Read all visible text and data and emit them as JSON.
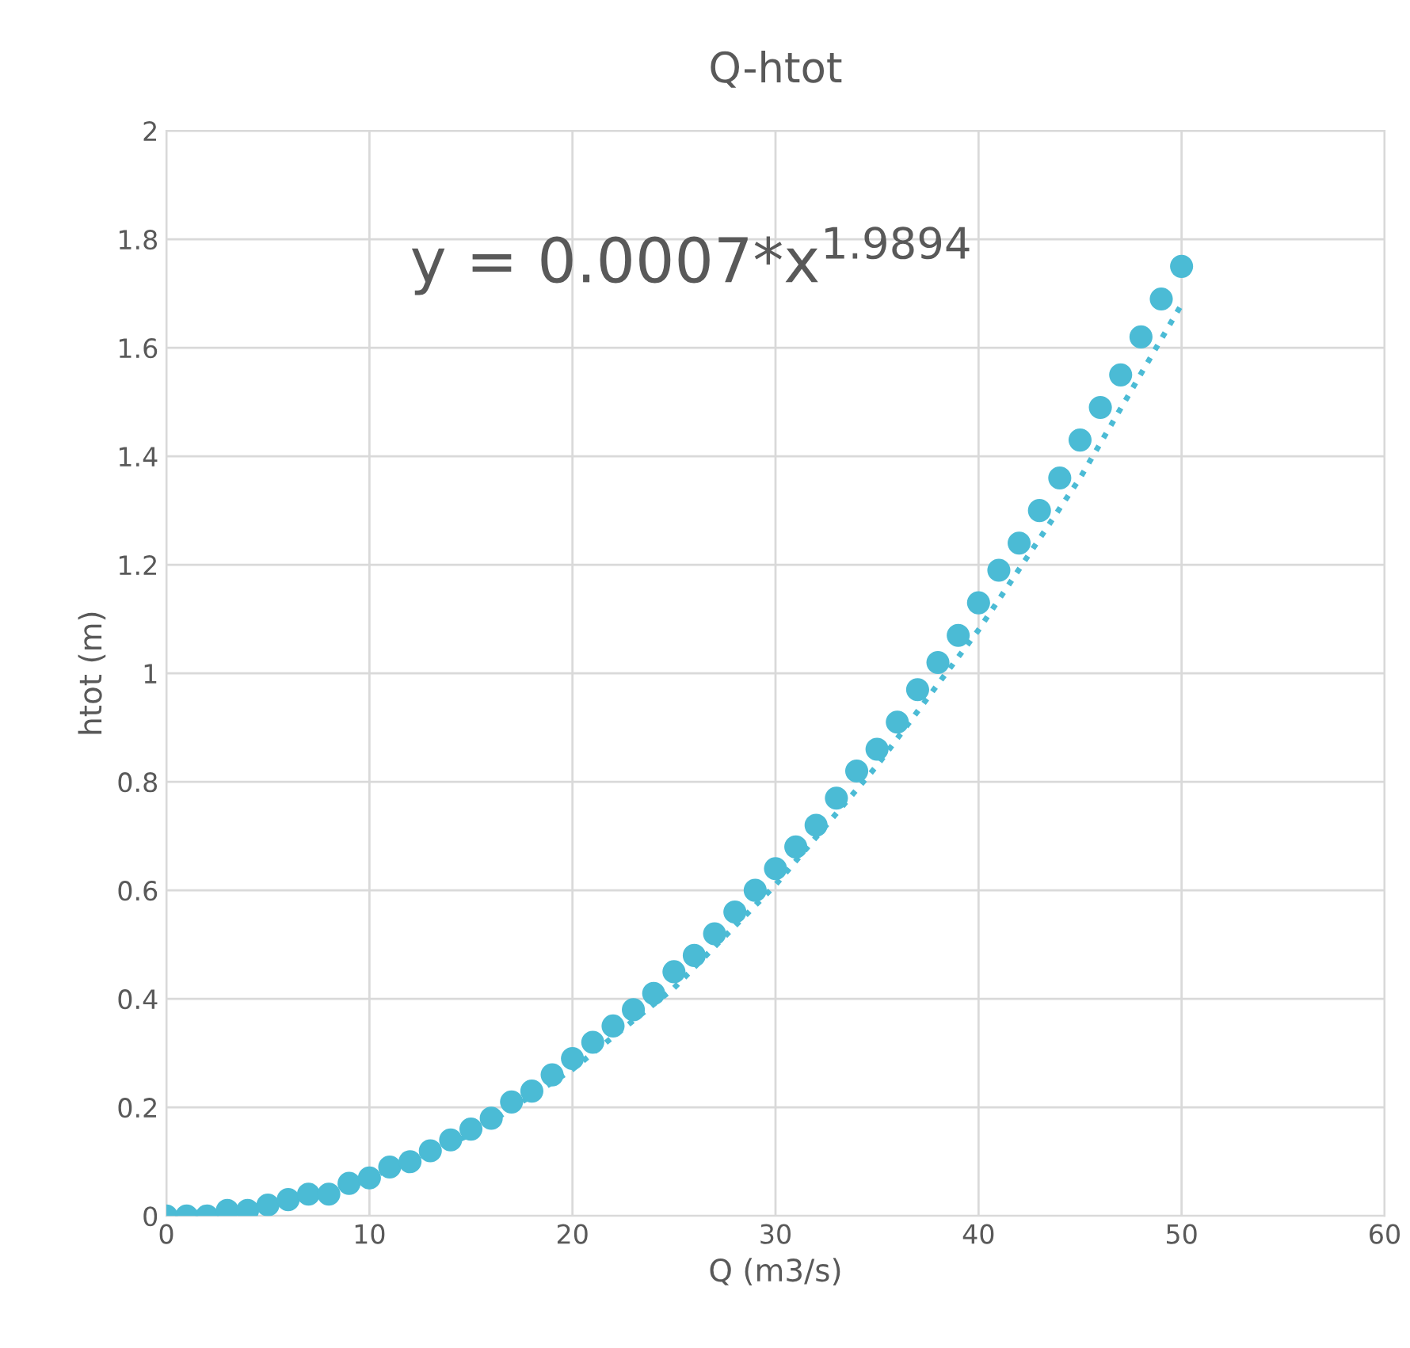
{
  "chart_data": {
    "type": "scatter",
    "title": "Q-htot",
    "xlabel": "Q (m3/s)",
    "ylabel": "htot (m)",
    "annotations": [
      "y = 0.0007*x$^{1.9894}$"
    ],
    "series": [
      {
        "color": "#4bbbd5",
        "marker": "circle",
        "x": [
          0,
          1,
          2,
          3,
          4,
          5,
          6,
          7,
          8,
          9,
          10,
          11,
          12,
          13,
          14,
          15,
          16,
          17,
          18,
          19,
          20,
          21,
          22,
          23,
          24,
          25,
          26,
          27,
          28,
          29,
          30,
          31,
          32,
          33,
          34,
          35,
          36,
          37,
          38,
          39,
          40,
          41,
          42,
          43,
          44,
          45,
          46,
          47,
          48,
          49,
          50
        ],
        "values": [
          0,
          0,
          0,
          0.01,
          0.01,
          0.02,
          0.03,
          0.04,
          0.04,
          0.06,
          0.07,
          0.09,
          0.1,
          0.12,
          0.14,
          0.16,
          0.18,
          0.21,
          0.23,
          0.26,
          0.29,
          0.32,
          0.35,
          0.38,
          0.41,
          0.45,
          0.48,
          0.52,
          0.56,
          0.6,
          0.64,
          0.68,
          0.72,
          0.77,
          0.82,
          0.86,
          0.91,
          0.97,
          1.02,
          1.07,
          1.13,
          1.19,
          1.24,
          1.3,
          1.36,
          1.43,
          1.49,
          1.55,
          1.62,
          1.69,
          1.75
        ]
      },
      {
        "type": "line",
        "color": "#4bbbd5",
        "line_style": "dotted",
        "x": [
          0,
          5,
          10,
          15,
          20,
          25,
          30,
          35,
          40,
          45,
          50
        ],
        "values": [
          0,
          0.02,
          0.07,
          0.15,
          0.27,
          0.42,
          0.61,
          0.83,
          1.08,
          1.36,
          1.68
        ]
      }
    ],
    "xlim": [
      0,
      60
    ],
    "xticks": [
      0,
      10,
      20,
      30,
      40,
      50,
      60
    ],
    "ylim": [
      0,
      2
    ],
    "yticks": [
      0,
      0.2,
      0.4,
      0.6,
      0.8,
      1,
      1.2,
      1.4,
      1.6,
      1.8,
      2
    ],
    "grid": true,
    "legend": false
  }
}
